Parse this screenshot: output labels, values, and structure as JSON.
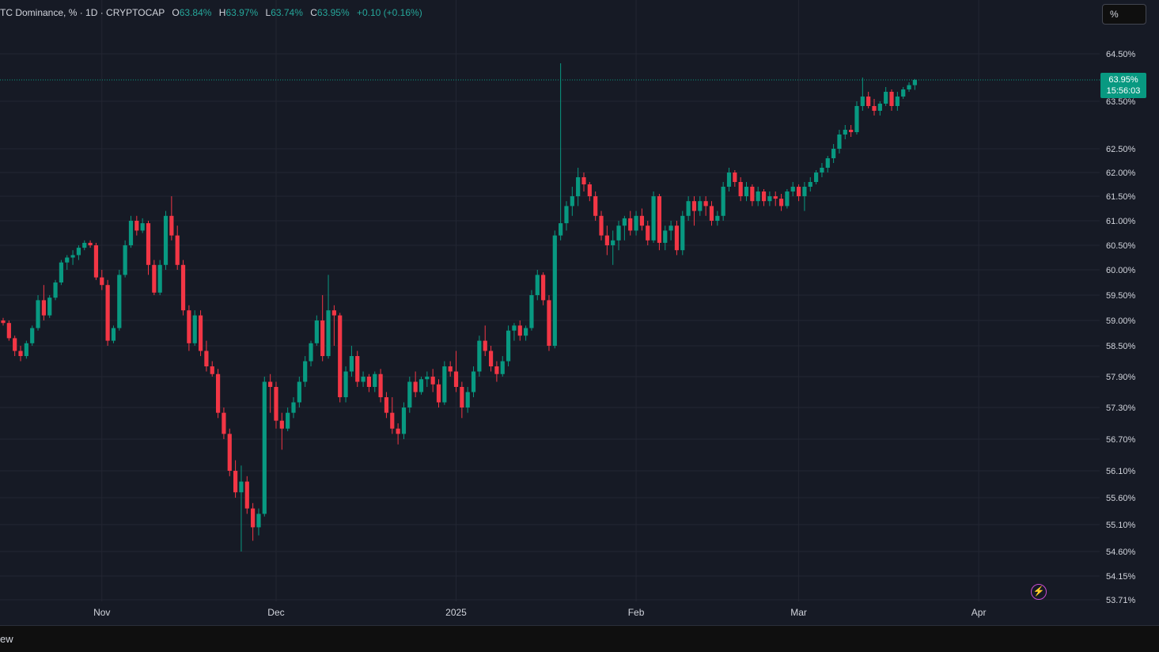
{
  "legend": {
    "symbol": "TC Dominance, % · 1D · CRYPTOCAP",
    "open_label": "O",
    "open": "63.84%",
    "high_label": "H",
    "high": "63.97%",
    "low_label": "L",
    "low": "63.74%",
    "close_label": "C",
    "close": "63.95%",
    "change": "+0.10 (+0.16%)"
  },
  "unit_button": "%",
  "last_price": {
    "value": "63.95%",
    "countdown": "15:56:03"
  },
  "footer_text": "ew",
  "colors": {
    "up": "#089981",
    "down": "#f23645",
    "background": "#161a25",
    "grid": "#232632",
    "text": "#b2b5be"
  },
  "icons": {
    "flash": "lightning-icon"
  },
  "chart_data": {
    "type": "candlestick",
    "symbol": "BTC Dominance",
    "timeframe": "1D",
    "y_ticks": [
      64.5,
      63.5,
      62.5,
      62.0,
      61.5,
      61.0,
      60.5,
      60.0,
      59.5,
      59.0,
      58.5,
      57.9,
      57.3,
      56.7,
      56.1,
      55.6,
      55.1,
      54.6,
      54.15,
      53.71
    ],
    "y_tick_labels": [
      "64.50%",
      "63.50%",
      "62.50%",
      "62.00%",
      "61.50%",
      "61.00%",
      "60.50%",
      "60.00%",
      "59.50%",
      "59.00%",
      "58.50%",
      "57.90%",
      "57.30%",
      "56.70%",
      "56.10%",
      "55.60%",
      "55.10%",
      "54.60%",
      "54.15%",
      "53.71%"
    ],
    "x_ticks": [
      {
        "label": "Nov",
        "date": "2024-11-01"
      },
      {
        "label": "Dec",
        "date": "2024-12-01"
      },
      {
        "label": "2025",
        "date": "2025-01-01"
      },
      {
        "label": "Feb",
        "date": "2025-02-01"
      },
      {
        "label": "Mar",
        "date": "2025-03-01"
      },
      {
        "label": "Apr",
        "date": "2025-04-01"
      }
    ],
    "last_value": 63.95,
    "candles_ohlc": [
      [
        59.0,
        59.05,
        58.9,
        58.95
      ],
      [
        58.95,
        59.0,
        58.6,
        58.65
      ],
      [
        58.65,
        58.7,
        58.3,
        58.4
      ],
      [
        58.4,
        58.5,
        58.2,
        58.3
      ],
      [
        58.3,
        58.6,
        58.25,
        58.55
      ],
      [
        58.55,
        58.9,
        58.5,
        58.85
      ],
      [
        58.85,
        59.5,
        58.8,
        59.4
      ],
      [
        59.4,
        59.7,
        59.0,
        59.1
      ],
      [
        59.1,
        59.5,
        59.05,
        59.45
      ],
      [
        59.45,
        59.8,
        59.4,
        59.75
      ],
      [
        59.75,
        60.2,
        59.7,
        60.15
      ],
      [
        60.15,
        60.3,
        60.0,
        60.25
      ],
      [
        60.25,
        60.4,
        60.1,
        60.3
      ],
      [
        60.3,
        60.5,
        60.2,
        60.45
      ],
      [
        60.45,
        60.6,
        60.4,
        60.55
      ],
      [
        60.55,
        60.6,
        60.45,
        60.5
      ],
      [
        60.5,
        60.55,
        59.8,
        59.85
      ],
      [
        59.85,
        60.0,
        59.6,
        59.7
      ],
      [
        59.7,
        59.8,
        58.5,
        58.6
      ],
      [
        58.6,
        58.9,
        58.55,
        58.85
      ],
      [
        58.85,
        60.0,
        58.8,
        59.9
      ],
      [
        59.9,
        60.6,
        59.85,
        60.5
      ],
      [
        60.5,
        61.1,
        60.45,
        61.0
      ],
      [
        61.0,
        61.1,
        60.7,
        60.8
      ],
      [
        60.8,
        61.05,
        60.75,
        60.95
      ],
      [
        60.95,
        61.0,
        59.9,
        60.1
      ],
      [
        60.1,
        60.2,
        59.5,
        59.55
      ],
      [
        59.55,
        60.2,
        59.5,
        60.1
      ],
      [
        60.1,
        61.2,
        60.0,
        61.1
      ],
      [
        61.1,
        61.5,
        60.6,
        60.7
      ],
      [
        60.7,
        60.9,
        60.0,
        60.1
      ],
      [
        60.1,
        60.2,
        59.1,
        59.2
      ],
      [
        59.2,
        59.3,
        58.4,
        58.55
      ],
      [
        58.55,
        59.2,
        58.5,
        59.1
      ],
      [
        59.1,
        59.2,
        58.3,
        58.4
      ],
      [
        58.4,
        58.6,
        58.0,
        58.1
      ],
      [
        58.1,
        58.2,
        57.9,
        57.95
      ],
      [
        57.95,
        58.05,
        57.1,
        57.2
      ],
      [
        57.2,
        57.3,
        56.7,
        56.8
      ],
      [
        56.8,
        56.9,
        56.0,
        56.1
      ],
      [
        56.1,
        56.3,
        55.6,
        55.7
      ],
      [
        55.7,
        56.2,
        54.6,
        55.9
      ],
      [
        55.9,
        56.0,
        55.3,
        55.4
      ],
      [
        55.4,
        55.5,
        54.8,
        55.05
      ],
      [
        55.05,
        55.4,
        54.9,
        55.3
      ],
      [
        55.3,
        57.9,
        55.25,
        57.8
      ],
      [
        57.8,
        57.95,
        57.2,
        57.7
      ],
      [
        57.7,
        57.8,
        56.9,
        57.05
      ],
      [
        57.05,
        57.2,
        56.5,
        56.9
      ],
      [
        56.9,
        57.3,
        56.85,
        57.2
      ],
      [
        57.2,
        57.5,
        57.1,
        57.4
      ],
      [
        57.4,
        57.9,
        57.3,
        57.8
      ],
      [
        57.8,
        58.3,
        57.7,
        58.2
      ],
      [
        58.2,
        58.6,
        58.1,
        58.55
      ],
      [
        58.55,
        59.1,
        58.5,
        59.0
      ],
      [
        59.0,
        59.5,
        58.2,
        58.3
      ],
      [
        58.3,
        59.9,
        58.25,
        59.2
      ],
      [
        59.2,
        59.3,
        58.5,
        59.1
      ],
      [
        59.1,
        59.15,
        57.4,
        57.5
      ],
      [
        57.5,
        58.1,
        57.4,
        58.0
      ],
      [
        58.0,
        58.5,
        57.9,
        58.3
      ],
      [
        58.3,
        58.4,
        57.7,
        57.8
      ],
      [
        57.8,
        58.0,
        57.7,
        57.9
      ],
      [
        57.9,
        57.95,
        57.6,
        57.7
      ],
      [
        57.7,
        58.0,
        57.6,
        57.95
      ],
      [
        57.95,
        58.05,
        57.4,
        57.5
      ],
      [
        57.5,
        57.6,
        57.1,
        57.2
      ],
      [
        57.2,
        57.5,
        56.8,
        56.9
      ],
      [
        56.9,
        57.0,
        56.6,
        56.8
      ],
      [
        56.8,
        57.4,
        56.7,
        57.3
      ],
      [
        57.3,
        57.9,
        57.2,
        57.8
      ],
      [
        57.8,
        58.0,
        57.5,
        57.6
      ],
      [
        57.6,
        57.9,
        57.55,
        57.85
      ],
      [
        57.85,
        58.0,
        57.7,
        57.9
      ],
      [
        57.9,
        58.05,
        57.6,
        57.75
      ],
      [
        57.75,
        57.85,
        57.3,
        57.4
      ],
      [
        57.4,
        58.2,
        57.35,
        58.1
      ],
      [
        58.1,
        58.2,
        57.9,
        58.0
      ],
      [
        58.0,
        58.4,
        57.6,
        57.7
      ],
      [
        57.7,
        57.8,
        57.1,
        57.3
      ],
      [
        57.3,
        57.7,
        57.2,
        57.6
      ],
      [
        57.6,
        58.1,
        57.5,
        58.0
      ],
      [
        58.0,
        58.7,
        57.9,
        58.6
      ],
      [
        58.6,
        58.9,
        58.3,
        58.4
      ],
      [
        58.4,
        58.5,
        58.0,
        58.1
      ],
      [
        58.1,
        58.2,
        57.8,
        57.95
      ],
      [
        57.95,
        58.3,
        57.9,
        58.2
      ],
      [
        58.2,
        58.9,
        58.1,
        58.8
      ],
      [
        58.8,
        58.95,
        58.6,
        58.9
      ],
      [
        58.9,
        59.0,
        58.6,
        58.7
      ],
      [
        58.7,
        58.9,
        58.6,
        58.85
      ],
      [
        58.85,
        59.6,
        58.8,
        59.5
      ],
      [
        59.5,
        60.0,
        59.4,
        59.9
      ],
      [
        59.9,
        59.95,
        59.3,
        59.4
      ],
      [
        59.4,
        59.5,
        58.4,
        58.5
      ],
      [
        58.5,
        60.8,
        58.45,
        60.7
      ],
      [
        60.7,
        64.3,
        60.6,
        60.95
      ],
      [
        60.95,
        61.4,
        60.8,
        61.3
      ],
      [
        61.3,
        61.7,
        61.1,
        61.5
      ],
      [
        61.5,
        62.1,
        61.3,
        61.9
      ],
      [
        61.9,
        62.0,
        61.6,
        61.75
      ],
      [
        61.75,
        61.8,
        61.4,
        61.5
      ],
      [
        61.5,
        61.6,
        61.0,
        61.1
      ],
      [
        61.1,
        61.2,
        60.6,
        60.7
      ],
      [
        60.7,
        60.9,
        60.3,
        60.5
      ],
      [
        60.5,
        60.8,
        60.1,
        60.6
      ],
      [
        60.6,
        61.0,
        60.4,
        60.9
      ],
      [
        60.9,
        61.1,
        60.6,
        61.05
      ],
      [
        61.05,
        61.2,
        60.7,
        60.8
      ],
      [
        60.8,
        61.2,
        60.7,
        61.1
      ],
      [
        61.1,
        61.25,
        60.8,
        60.9
      ],
      [
        60.9,
        61.0,
        60.5,
        60.6
      ],
      [
        60.6,
        61.6,
        60.55,
        61.5
      ],
      [
        61.5,
        61.55,
        60.4,
        60.55
      ],
      [
        60.55,
        60.9,
        60.4,
        60.8
      ],
      [
        60.8,
        61.0,
        60.6,
        60.9
      ],
      [
        60.9,
        61.0,
        60.3,
        60.4
      ],
      [
        60.4,
        61.2,
        60.3,
        61.1
      ],
      [
        61.1,
        61.5,
        61.0,
        61.4
      ],
      [
        61.4,
        61.5,
        60.9,
        61.2
      ],
      [
        61.2,
        61.5,
        61.1,
        61.4
      ],
      [
        61.4,
        61.5,
        61.1,
        61.3
      ],
      [
        61.3,
        61.4,
        60.9,
        61.0
      ],
      [
        61.0,
        61.2,
        60.9,
        61.1
      ],
      [
        61.1,
        61.8,
        61.0,
        61.7
      ],
      [
        61.7,
        62.1,
        61.6,
        62.0
      ],
      [
        62.0,
        62.05,
        61.7,
        61.8
      ],
      [
        61.8,
        61.9,
        61.4,
        61.5
      ],
      [
        61.5,
        61.8,
        61.4,
        61.7
      ],
      [
        61.7,
        61.75,
        61.3,
        61.4
      ],
      [
        61.4,
        61.7,
        61.3,
        61.6
      ],
      [
        61.6,
        61.65,
        61.3,
        61.4
      ],
      [
        61.4,
        61.6,
        61.3,
        61.5
      ],
      [
        61.5,
        61.6,
        61.3,
        61.45
      ],
      [
        61.45,
        61.55,
        61.2,
        61.3
      ],
      [
        61.3,
        61.65,
        61.25,
        61.6
      ],
      [
        61.6,
        61.8,
        61.5,
        61.7
      ],
      [
        61.7,
        61.75,
        61.4,
        61.5
      ],
      [
        61.5,
        61.8,
        61.2,
        61.7
      ],
      [
        61.7,
        61.9,
        61.6,
        61.8
      ],
      [
        61.8,
        62.05,
        61.75,
        62.0
      ],
      [
        62.0,
        62.2,
        61.9,
        62.1
      ],
      [
        62.1,
        62.35,
        62.0,
        62.3
      ],
      [
        62.3,
        62.6,
        62.2,
        62.5
      ],
      [
        62.5,
        62.9,
        62.4,
        62.8
      ],
      [
        62.8,
        63.0,
        62.7,
        62.9
      ],
      [
        62.9,
        63.0,
        62.75,
        62.85
      ],
      [
        62.85,
        63.5,
        62.8,
        63.4
      ],
      [
        63.4,
        64.0,
        63.3,
        63.6
      ],
      [
        63.6,
        63.7,
        63.35,
        63.4
      ],
      [
        63.4,
        63.55,
        63.2,
        63.3
      ],
      [
        63.3,
        63.5,
        63.2,
        63.45
      ],
      [
        63.45,
        63.8,
        63.4,
        63.7
      ],
      [
        63.7,
        63.75,
        63.3,
        63.4
      ],
      [
        63.4,
        63.7,
        63.3,
        63.6
      ],
      [
        63.6,
        63.8,
        63.55,
        63.75
      ],
      [
        63.75,
        63.9,
        63.7,
        63.84
      ],
      [
        63.84,
        63.97,
        63.74,
        63.95
      ]
    ]
  }
}
